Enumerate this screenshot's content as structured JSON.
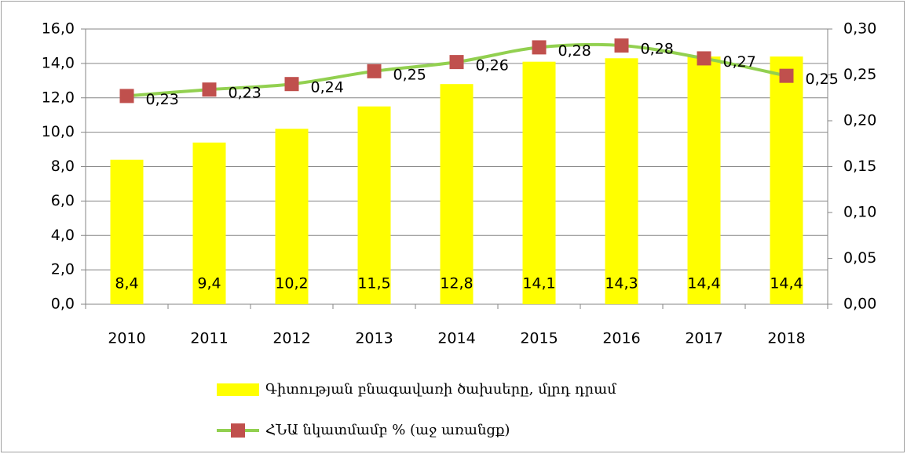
{
  "chart_data": {
    "type": "bar",
    "categories": [
      "2010",
      "2011",
      "2012",
      "2013",
      "2014",
      "2015",
      "2016",
      "2017",
      "2018"
    ],
    "series": [
      {
        "name": "Գիտության բնագավառի ծախսերը, մլրդ դրամ",
        "type": "bar",
        "color": "#ffff00",
        "values": [
          8.4,
          9.4,
          10.2,
          11.5,
          12.8,
          14.1,
          14.3,
          14.4,
          14.4
        ],
        "value_labels": [
          "8,4",
          "9,4",
          "10,2",
          "11,5",
          "12,8",
          "14,1",
          "14,3",
          "14,4",
          "14,4"
        ]
      },
      {
        "name": "ՀՆԱ նկատմամբ % (աջ առանցք)",
        "type": "line",
        "axis": "y2",
        "color": "#92d050",
        "marker_color": "#c0504d",
        "values": [
          0.227,
          0.234,
          0.24,
          0.254,
          0.264,
          0.28,
          0.282,
          0.268,
          0.249
        ],
        "value_labels": [
          "0,23",
          "0,23",
          "0,24",
          "0,25",
          "0,26",
          "0,28",
          "0,28",
          "0,27",
          "0,25"
        ]
      }
    ],
    "ylim": [
      0,
      16
    ],
    "yticks": [
      {
        "value": 0,
        "label": "0,0"
      },
      {
        "value": 2,
        "label": "2,0"
      },
      {
        "value": 4,
        "label": "4,0"
      },
      {
        "value": 6,
        "label": "6,0"
      },
      {
        "value": 8,
        "label": "8,0"
      },
      {
        "value": 10,
        "label": "10,0"
      },
      {
        "value": 12,
        "label": "12,0"
      },
      {
        "value": 14,
        "label": "14,0"
      },
      {
        "value": 16,
        "label": "16,0"
      }
    ],
    "y2lim": [
      0,
      0.3
    ],
    "y2ticks": [
      {
        "value": 0,
        "label": "0,00"
      },
      {
        "value": 0.05,
        "label": "0,05"
      },
      {
        "value": 0.1,
        "label": "0,10"
      },
      {
        "value": 0.15,
        "label": "0,15"
      },
      {
        "value": 0.2,
        "label": "0,20"
      },
      {
        "value": 0.25,
        "label": "0,25"
      },
      {
        "value": 0.3,
        "label": "0,30"
      }
    ],
    "grid": true,
    "legend": "bottom"
  }
}
